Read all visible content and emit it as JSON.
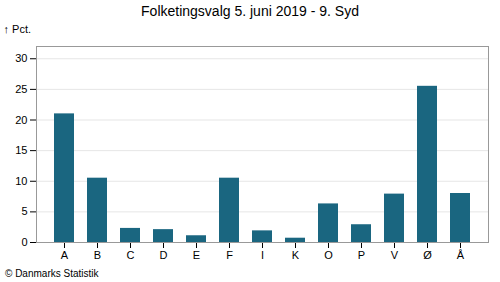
{
  "chart_data": {
    "type": "bar",
    "title": "Folketingsvalg 5. juni 2019 - 9. Syd",
    "ylabel": "Pct.",
    "caption": "© Danmarks Statistik",
    "categories": [
      "A",
      "B",
      "C",
      "D",
      "E",
      "F",
      "I",
      "K",
      "O",
      "P",
      "V",
      "Ø",
      "Å"
    ],
    "values": [
      21.0,
      10.5,
      2.3,
      2.1,
      1.1,
      10.5,
      1.9,
      0.7,
      6.3,
      2.9,
      7.9,
      25.5,
      8.0
    ],
    "color": "#1a6680",
    "ylim": [
      0,
      32
    ],
    "yticks": [
      0,
      5,
      10,
      15,
      20,
      25,
      30
    ],
    "grid": true
  }
}
